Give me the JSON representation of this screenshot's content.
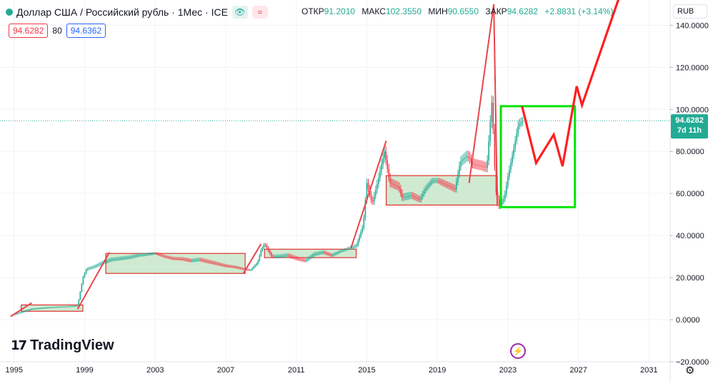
{
  "header": {
    "title": "Доллар США / Российский рубль · 1Мес · ICE",
    "open_label": "ОТКР",
    "open_value": "91.2010",
    "high_label": "МАКС",
    "high_value": "102.3550",
    "low_label": "МИН",
    "low_value": "90.6550",
    "close_label": "ЗАКР",
    "close_value": "94.6282",
    "change": "+2.8831 (+3.14%)",
    "status_icon": "green-dot-icon",
    "eye_icon": "eye-icon",
    "code_icon": "code-icon"
  },
  "trade": {
    "sell": "94.6282",
    "qty": "80",
    "buy": "94.6362"
  },
  "currency_label": "RUB",
  "brand": {
    "name": "TradingView",
    "logo_icon": "tv-logo-icon"
  },
  "price_tag": {
    "price": "94.6282",
    "countdown": "7d 11h"
  },
  "colors": {
    "up": "#22ab94",
    "down": "#f23645",
    "accent": "#2962ff",
    "box_green": "#00e400",
    "proj_red": "#ff1f1f",
    "range_fill": "#c8e6c9"
  },
  "chart_data": {
    "type": "candlestick",
    "xlabel": "",
    "ylabel": "",
    "xlim": [
      1994.2,
      2032.2
    ],
    "ylim": [
      -20,
      152
    ],
    "y_ticks": [
      -20,
      0,
      20,
      40,
      60,
      80,
      100,
      120,
      140
    ],
    "y_tick_labels": [
      "−20.0000",
      "0.0000",
      "20.0000",
      "40.0000",
      "60.0000",
      "80.0000",
      "100.0000",
      "120.0000",
      "140.0000"
    ],
    "x_ticks": [
      1995,
      1999,
      2003,
      2007,
      2011,
      2015,
      2019,
      2023,
      2027,
      2031
    ],
    "current_price": 94.6282,
    "grid": true,
    "price_path": [
      [
        1995.0,
        2.5
      ],
      [
        1996.0,
        5.0
      ],
      [
        1997.0,
        5.8
      ],
      [
        1998.0,
        6.2
      ],
      [
        1998.6,
        6.5
      ],
      [
        1998.9,
        20
      ],
      [
        1999.1,
        24
      ],
      [
        1999.5,
        25
      ],
      [
        2000.0,
        27
      ],
      [
        2000.5,
        28.5
      ],
      [
        2001.0,
        29
      ],
      [
        2001.5,
        29.5
      ],
      [
        2002.0,
        30.5
      ],
      [
        2002.5,
        31
      ],
      [
        2003.0,
        31.5
      ],
      [
        2003.5,
        30
      ],
      [
        2004.0,
        29
      ],
      [
        2004.5,
        28.8
      ],
      [
        2005.0,
        28
      ],
      [
        2005.5,
        28.5
      ],
      [
        2006.0,
        27.5
      ],
      [
        2006.5,
        26.5
      ],
      [
        2007.0,
        25.5
      ],
      [
        2007.5,
        25
      ],
      [
        2008.0,
        24
      ],
      [
        2008.4,
        23.5
      ],
      [
        2008.8,
        27
      ],
      [
        2009.0,
        33
      ],
      [
        2009.2,
        36
      ],
      [
        2009.6,
        30
      ],
      [
        2010.0,
        30
      ],
      [
        2010.5,
        30.5
      ],
      [
        2011.0,
        29
      ],
      [
        2011.5,
        28
      ],
      [
        2012.0,
        31
      ],
      [
        2012.5,
        32
      ],
      [
        2013.0,
        30.5
      ],
      [
        2013.5,
        32.5
      ],
      [
        2014.0,
        34
      ],
      [
        2014.4,
        35
      ],
      [
        2014.8,
        45
      ],
      [
        2015.0,
        65
      ],
      [
        2015.3,
        55
      ],
      [
        2015.6,
        65
      ],
      [
        2016.0,
        80
      ],
      [
        2016.3,
        65
      ],
      [
        2016.8,
        63
      ],
      [
        2017.0,
        58
      ],
      [
        2017.5,
        59
      ],
      [
        2018.0,
        57
      ],
      [
        2018.3,
        62
      ],
      [
        2018.7,
        66
      ],
      [
        2019.0,
        66
      ],
      [
        2019.5,
        64
      ],
      [
        2020.0,
        62
      ],
      [
        2020.3,
        75
      ],
      [
        2020.7,
        78
      ],
      [
        2021.0,
        74
      ],
      [
        2021.5,
        73
      ],
      [
        2021.8,
        72
      ],
      [
        2022.1,
        105
      ],
      [
        2022.3,
        62
      ],
      [
        2022.5,
        54
      ],
      [
        2022.8,
        58
      ],
      [
        2023.0,
        68
      ],
      [
        2023.3,
        80
      ],
      [
        2023.6,
        93
      ],
      [
        2023.9,
        94.6
      ]
    ],
    "range_boxes": [
      {
        "x": [
          1995.4,
          1998.9
        ],
        "y": [
          4.0,
          7.0
        ]
      },
      {
        "x": [
          2000.2,
          2008.1
        ],
        "y": [
          22.0,
          31.5
        ]
      },
      {
        "x": [
          2009.2,
          2014.4
        ],
        "y": [
          29.5,
          33.5
        ]
      },
      {
        "x": [
          2016.1,
          2022.4
        ],
        "y": [
          54.5,
          68.5
        ]
      }
    ],
    "trend_lines": [
      [
        [
          1994.8,
          1.5
        ],
        [
          1996.0,
          8.0
        ]
      ],
      [
        [
          1998.6,
          5.0
        ],
        [
          2000.4,
          32.0
        ]
      ],
      [
        [
          2008.0,
          22.0
        ],
        [
          2009.0,
          36.0
        ]
      ],
      [
        [
          2014.1,
          34.0
        ],
        [
          2016.1,
          85.0
        ]
      ],
      [
        [
          2020.8,
          65.0
        ],
        [
          2022.2,
          150.0
        ]
      ],
      [
        [
          2022.2,
          150.0
        ],
        [
          2022.4,
          54.0
        ]
      ]
    ],
    "projection_box": {
      "x": [
        2022.6,
        2026.8
      ],
      "y": [
        53.5,
        101.5
      ]
    },
    "projection_path": [
      [
        2023.8,
        101.5
      ],
      [
        2024.6,
        74.5
      ],
      [
        2025.6,
        88.0
      ],
      [
        2026.1,
        73.0
      ],
      [
        2026.9,
        111.0
      ],
      [
        2027.2,
        102.0
      ],
      [
        2029.3,
        153.0
      ]
    ]
  }
}
